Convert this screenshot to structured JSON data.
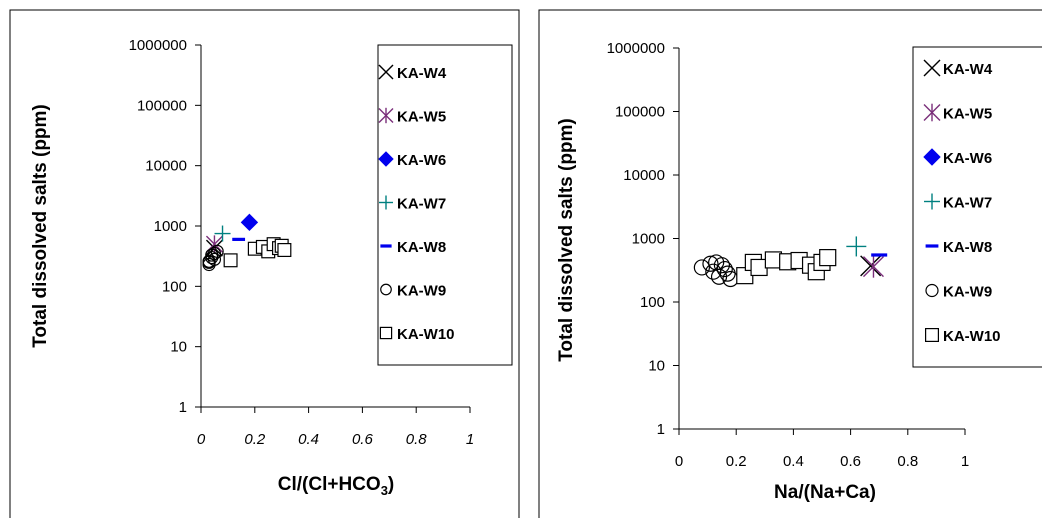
{
  "chart_data": [
    {
      "type": "scatter",
      "xlabel": "Cl/(Cl+HCO",
      "xlabel_sub": "3",
      "xlabel_close": ")",
      "ylabel": "Total dissolved salts (ppm)",
      "y_scale": "log",
      "xlim": [
        0,
        1
      ],
      "ylim": [
        1,
        1000000
      ],
      "x_ticks": [
        "0",
        "0.2",
        "0.4",
        "0.6",
        "0.8",
        "1"
      ],
      "y_ticks": [
        "1",
        "10",
        "100",
        "1000",
        "10000",
        "100000",
        "1000000"
      ],
      "legend_position": "top-right",
      "legend": [
        "KA-W4",
        "KA-W5",
        "KA-W6",
        "KA-W7",
        "KA-W8",
        "KA-W9",
        "KA-W10"
      ],
      "series": [
        {
          "name": "KA-W4",
          "marker": "x",
          "color": "#000000",
          "x": [
            0.05
          ],
          "y": [
            430
          ]
        },
        {
          "name": "KA-W5",
          "marker": "asterisk",
          "color": "#7b2f7b",
          "x": [
            0.05
          ],
          "y": [
            500
          ]
        },
        {
          "name": "KA-W6",
          "marker": "diamond",
          "color": "#0000ee",
          "x": [
            0.18
          ],
          "y": [
            1150
          ]
        },
        {
          "name": "KA-W7",
          "marker": "plus",
          "color": "#008080",
          "x": [
            0.08
          ],
          "y": [
            750
          ]
        },
        {
          "name": "KA-W8",
          "marker": "dash",
          "color": "#0000ee",
          "x": [
            0.14
          ],
          "y": [
            600
          ]
        },
        {
          "name": "KA-W9",
          "marker": "circle",
          "color": "#000000",
          "x": [
            0.03,
            0.04,
            0.05,
            0.03,
            0.05,
            0.04,
            0.06,
            0.03
          ],
          "y": [
            250,
            300,
            350,
            230,
            280,
            330,
            380,
            260
          ]
        },
        {
          "name": "KA-W10",
          "marker": "square",
          "color": "#000000",
          "x": [
            0.11,
            0.2,
            0.23,
            0.25,
            0.27,
            0.29,
            0.3,
            0.31
          ],
          "y": [
            270,
            420,
            450,
            380,
            500,
            430,
            470,
            400
          ]
        }
      ]
    },
    {
      "type": "scatter",
      "xlabel": "Na/(Na+Ca)",
      "ylabel": "Total dissolved salts (ppm)",
      "y_scale": "log",
      "xlim": [
        0,
        1
      ],
      "ylim": [
        1,
        1000000
      ],
      "x_ticks": [
        "0",
        "0.2",
        "0.4",
        "0.6",
        "0.8",
        "1"
      ],
      "y_ticks": [
        "1",
        "10",
        "100",
        "1000",
        "10000",
        "100000",
        "1000000"
      ],
      "legend_position": "top-right",
      "legend": [
        "KA-W4",
        "KA-W5",
        "KA-W6",
        "KA-W7",
        "KA-W8",
        "KA-W9",
        "KA-W10"
      ],
      "series": [
        {
          "name": "KA-W4",
          "marker": "x",
          "color": "#000000",
          "x": [
            0.67
          ],
          "y": [
            370
          ]
        },
        {
          "name": "KA-W5",
          "marker": "asterisk",
          "color": "#7b2f7b",
          "x": [
            0.68
          ],
          "y": [
            360
          ]
        },
        {
          "name": "KA-W6",
          "marker": "diamond",
          "color": "#0000ee",
          "x": [],
          "y": []
        },
        {
          "name": "KA-W7",
          "marker": "plus",
          "color": "#008080",
          "x": [
            0.62
          ],
          "y": [
            750
          ]
        },
        {
          "name": "KA-W8",
          "marker": "dash",
          "color": "#0000ee",
          "x": [
            0.7
          ],
          "y": [
            550
          ]
        },
        {
          "name": "KA-W9",
          "marker": "circle",
          "color": "#000000",
          "x": [
            0.08,
            0.11,
            0.12,
            0.13,
            0.14,
            0.15,
            0.16,
            0.17,
            0.18
          ],
          "y": [
            350,
            400,
            300,
            420,
            250,
            380,
            330,
            280,
            230
          ]
        },
        {
          "name": "KA-W10",
          "marker": "square",
          "color": "#000000",
          "x": [
            0.23,
            0.26,
            0.28,
            0.33,
            0.38,
            0.42,
            0.46,
            0.48,
            0.5,
            0.52
          ],
          "y": [
            260,
            420,
            350,
            460,
            430,
            450,
            380,
            300,
            420,
            500
          ]
        }
      ]
    }
  ]
}
